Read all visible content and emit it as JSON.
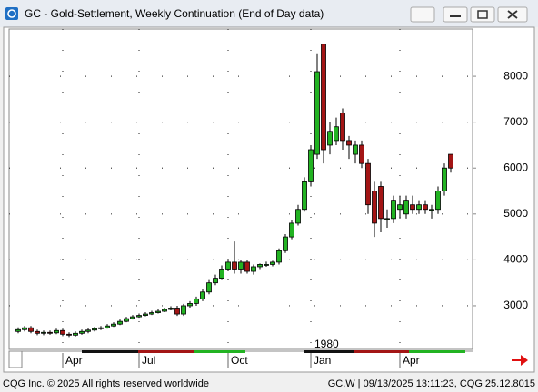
{
  "chart_data": {
    "type": "candlestick",
    "title": "GC - Gold-Settlement, Weekly Continuation (End of Day data)",
    "annotation": "1980",
    "categories": [
      null,
      null,
      null,
      null,
      null,
      null,
      null,
      "Apr",
      null,
      null,
      null,
      null,
      null,
      null,
      null,
      null,
      null,
      null,
      null,
      "Jul",
      null,
      null,
      null,
      null,
      null,
      null,
      null,
      null,
      null,
      null,
      null,
      null,
      null,
      "Oct",
      null,
      null,
      null,
      null,
      null,
      null,
      null,
      null,
      null,
      null,
      null,
      null,
      "Jan",
      null,
      null,
      null,
      null,
      null,
      null,
      null,
      null,
      null,
      null,
      null,
      null,
      null,
      "Apr",
      null,
      null,
      null,
      null,
      null,
      null,
      null,
      null
    ],
    "open": [
      2440,
      2480,
      2520,
      2440,
      2400,
      2420,
      2410,
      2460,
      2380,
      2360,
      2400,
      2440,
      2470,
      2500,
      2520,
      2560,
      2600,
      2660,
      2720,
      2760,
      2790,
      2820,
      2850,
      2880,
      2920,
      2950,
      2820,
      3000,
      3050,
      3150,
      3300,
      3500,
      3600,
      3800,
      3950,
      3800,
      3950,
      3750,
      3850,
      3900,
      3900,
      3950,
      4200,
      4500,
      4800,
      5100,
      5700,
      6300,
      8700,
      6500,
      6600,
      7200,
      6600,
      6300,
      6500,
      6100,
      5500,
      5600,
      4900,
      4900,
      5100,
      5000,
      5200,
      5100,
      5200,
      5100,
      5100,
      5500,
      6300
    ],
    "high": [
      2530,
      2560,
      2560,
      2480,
      2460,
      2460,
      2500,
      2500,
      2420,
      2440,
      2480,
      2510,
      2540,
      2560,
      2600,
      2640,
      2700,
      2760,
      2800,
      2830,
      2860,
      2890,
      2920,
      2960,
      2990,
      3000,
      3040,
      3100,
      3200,
      3360,
      3560,
      3680,
      3880,
      4000,
      4400,
      4000,
      4000,
      3900,
      3920,
      3960,
      3980,
      4250,
      4560,
      4860,
      5200,
      5800,
      6500,
      8500,
      8700,
      7000,
      7100,
      7300,
      6700,
      6600,
      6600,
      6200,
      5700,
      5700,
      5100,
      5400,
      5400,
      5400,
      5400,
      5300,
      5300,
      5200,
      5600,
      6100,
      6300
    ],
    "low": [
      2400,
      2440,
      2400,
      2360,
      2360,
      2370,
      2380,
      2340,
      2320,
      2330,
      2370,
      2400,
      2440,
      2470,
      2500,
      2540,
      2580,
      2640,
      2700,
      2740,
      2770,
      2800,
      2830,
      2860,
      2900,
      2780,
      2780,
      2960,
      3000,
      3100,
      3250,
      3450,
      3560,
      3750,
      3700,
      3700,
      3700,
      3680,
      3800,
      3850,
      3860,
      3900,
      4150,
      4450,
      4750,
      5050,
      5600,
      6200,
      6100,
      6300,
      6500,
      6400,
      6200,
      6100,
      6000,
      5000,
      4500,
      4600,
      4700,
      4800,
      4900,
      4900,
      5000,
      5000,
      5000,
      4900,
      5000,
      5400,
      5900
    ],
    "close": [
      2480,
      2520,
      2440,
      2400,
      2420,
      2410,
      2460,
      2380,
      2360,
      2400,
      2440,
      2470,
      2500,
      2520,
      2560,
      2600,
      2660,
      2720,
      2760,
      2790,
      2820,
      2850,
      2880,
      2920,
      2950,
      2820,
      3000,
      3050,
      3150,
      3300,
      3500,
      3600,
      3800,
      3950,
      3800,
      3950,
      3750,
      3850,
      3900,
      3900,
      3950,
      4200,
      4500,
      4800,
      5100,
      5700,
      6400,
      8100,
      6400,
      6800,
      6900,
      6600,
      6500,
      6500,
      6100,
      5200,
      4800,
      4900,
      4900,
      5300,
      5200,
      5300,
      5100,
      5200,
      5100,
      5100,
      5500,
      6000,
      6000
    ],
    "up_color": "#22b322",
    "down_color": "#a31515",
    "ylim": [
      2050,
      9030
    ],
    "yticks": [
      3000,
      4000,
      5000,
      6000,
      7000,
      8000
    ],
    "grid": true
  },
  "status_bar": {
    "left": "CQG Inc. © 2025 All rights reserved worldwide",
    "right": "GC,W | 09/13/2025 13:11:23, CQG 25.12.8015"
  }
}
